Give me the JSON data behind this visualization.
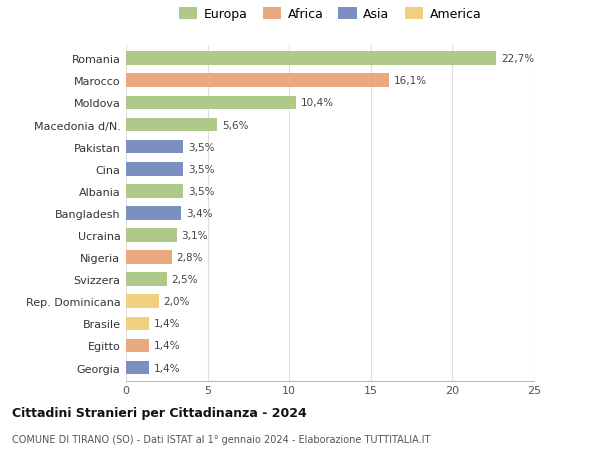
{
  "countries": [
    "Romania",
    "Marocco",
    "Moldova",
    "Macedonia d/N.",
    "Pakistan",
    "Cina",
    "Albania",
    "Bangladesh",
    "Ucraina",
    "Nigeria",
    "Svizzera",
    "Rep. Dominicana",
    "Brasile",
    "Egitto",
    "Georgia"
  ],
  "values": [
    22.7,
    16.1,
    10.4,
    5.6,
    3.5,
    3.5,
    3.5,
    3.4,
    3.1,
    2.8,
    2.5,
    2.0,
    1.4,
    1.4,
    1.4
  ],
  "labels": [
    "22,7%",
    "16,1%",
    "10,4%",
    "5,6%",
    "3,5%",
    "3,5%",
    "3,5%",
    "3,4%",
    "3,1%",
    "2,8%",
    "2,5%",
    "2,0%",
    "1,4%",
    "1,4%",
    "1,4%"
  ],
  "continents": [
    "Europa",
    "Africa",
    "Europa",
    "Europa",
    "Asia",
    "Asia",
    "Europa",
    "Asia",
    "Europa",
    "Africa",
    "Europa",
    "America",
    "America",
    "Africa",
    "Asia"
  ],
  "colors": {
    "Europa": "#aec98a",
    "Africa": "#e8a97e",
    "Asia": "#7b8fc0",
    "America": "#f0d080"
  },
  "legend_order": [
    "Europa",
    "Africa",
    "Asia",
    "America"
  ],
  "title": "Cittadini Stranieri per Cittadinanza - 2024",
  "subtitle": "COMUNE DI TIRANO (SO) - Dati ISTAT al 1° gennaio 2024 - Elaborazione TUTTITALIA.IT",
  "xlim": [
    0,
    25
  ],
  "xticks": [
    0,
    5,
    10,
    15,
    20,
    25
  ],
  "background_color": "#ffffff",
  "grid_color": "#dddddd"
}
